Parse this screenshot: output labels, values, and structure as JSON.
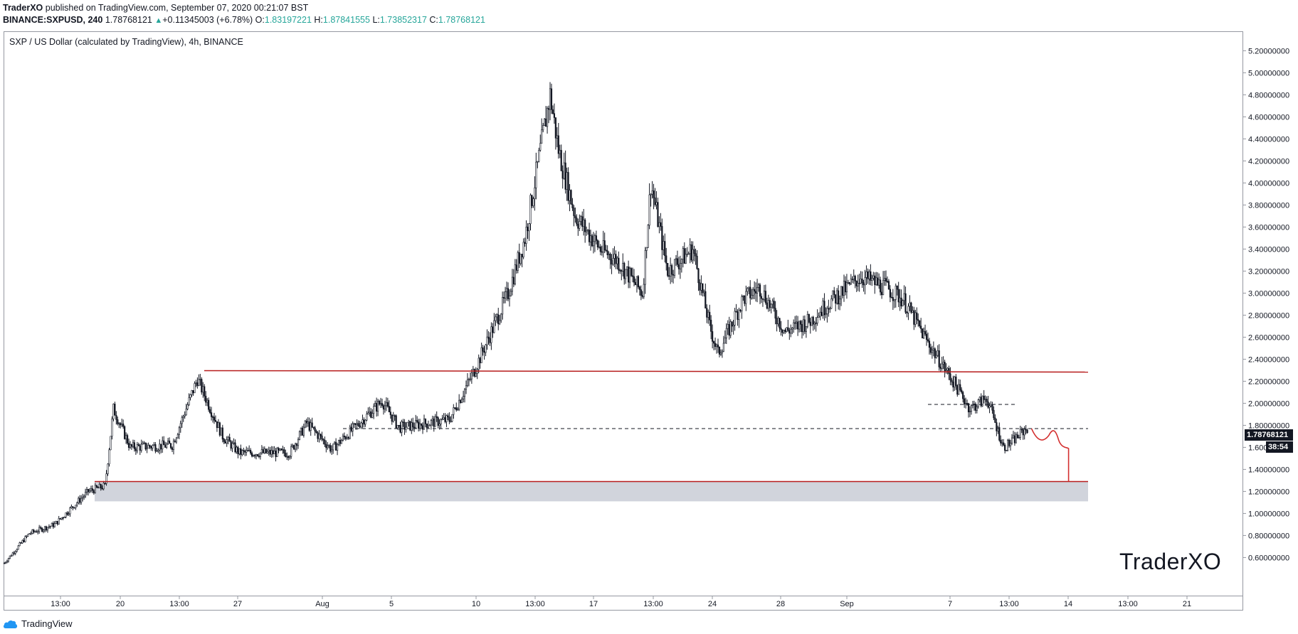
{
  "header": {
    "author": "TraderXO",
    "published_text": "published on TradingView.com, September 07, 2020 00:21:07 BST",
    "symbol_interval": "BINANCE:SXPUSD, 240",
    "last_price": "1.78768121",
    "change": "+0.11345003 (+6.78%)",
    "o_label": "O:",
    "o_value": "1.83197221",
    "h_label": "H:",
    "h_value": "1.87841555",
    "l_label": "L:",
    "l_value": "1.73852317",
    "c_label": "C:",
    "c_value": "1.78768121"
  },
  "chart_title": "SXP / US Dollar (calculated by TradingView), 4h, BINANCE",
  "watermark": "TraderXO",
  "footer_brand": "TradingView",
  "price_label": "1.78768121",
  "countdown_label": "38:54",
  "colors": {
    "line_red": "#b71c1c",
    "zone_gray": "#d1d4dc",
    "candle": "#131722",
    "label_dark": "#131722",
    "projection_red": "#d32f2f"
  },
  "chart_data": {
    "type": "candlestick",
    "y_ticks": [
      "0.60000000",
      "0.80000000",
      "1.00000000",
      "1.20000000",
      "1.40000000",
      "1.60000000",
      "1.80000000",
      "2.00000000",
      "2.20000000",
      "2.40000000",
      "2.60000000",
      "2.80000000",
      "3.00000000",
      "3.20000000",
      "3.40000000",
      "3.60000000",
      "3.80000000",
      "4.00000000",
      "4.20000000",
      "4.40000000",
      "4.60000000",
      "4.80000000",
      "5.00000000",
      "5.20000000"
    ],
    "x_ticks": [
      "13:00",
      "20",
      "13:00",
      "27",
      "Aug",
      "5",
      "10",
      "13:00",
      "17",
      "13:00",
      "24",
      "28",
      "Sep",
      "7",
      "13:00",
      "14",
      "13:00",
      "21"
    ],
    "ylim": [
      0.48,
      5.28
    ],
    "close_path": [
      {
        "day": 0,
        "price": 0.55
      },
      {
        "day": 3,
        "price": 0.82
      },
      {
        "day": 6,
        "price": 0.9
      },
      {
        "day": 10,
        "price": 1.2
      },
      {
        "day": 12,
        "price": 1.25
      },
      {
        "day": 13,
        "price": 1.95
      },
      {
        "day": 15,
        "price": 1.6
      },
      {
        "day": 20,
        "price": 1.62
      },
      {
        "day": 23,
        "price": 2.22
      },
      {
        "day": 26,
        "price": 1.7
      },
      {
        "day": 28,
        "price": 1.55
      },
      {
        "day": 34,
        "price": 1.55
      },
      {
        "day": 36,
        "price": 1.82
      },
      {
        "day": 39,
        "price": 1.58
      },
      {
        "day": 45,
        "price": 2.02
      },
      {
        "day": 47,
        "price": 1.78
      },
      {
        "day": 53,
        "price": 1.85
      },
      {
        "day": 56,
        "price": 2.3
      },
      {
        "day": 60,
        "price": 3.0
      },
      {
        "day": 62,
        "price": 3.5
      },
      {
        "day": 65,
        "price": 4.8
      },
      {
        "day": 66,
        "price": 4.3
      },
      {
        "day": 68,
        "price": 3.7
      },
      {
        "day": 71,
        "price": 3.4
      },
      {
        "day": 73,
        "price": 3.3
      },
      {
        "day": 76,
        "price": 3.0
      },
      {
        "day": 77,
        "price": 4.0
      },
      {
        "day": 79,
        "price": 3.2
      },
      {
        "day": 82,
        "price": 3.4
      },
      {
        "day": 84,
        "price": 2.7
      },
      {
        "day": 85,
        "price": 2.45
      },
      {
        "day": 88,
        "price": 2.95
      },
      {
        "day": 90,
        "price": 3.05
      },
      {
        "day": 93,
        "price": 2.65
      },
      {
        "day": 96,
        "price": 2.75
      },
      {
        "day": 98,
        "price": 2.9
      },
      {
        "day": 102,
        "price": 3.15
      },
      {
        "day": 105,
        "price": 3.05
      },
      {
        "day": 107,
        "price": 2.95
      },
      {
        "day": 110,
        "price": 2.55
      },
      {
        "day": 113,
        "price": 2.2
      },
      {
        "day": 115,
        "price": 1.95
      },
      {
        "day": 117,
        "price": 2.05
      },
      {
        "day": 119,
        "price": 1.6
      },
      {
        "day": 120,
        "price": 1.65
      },
      {
        "day": 122,
        "price": 1.79
      }
    ],
    "levels": {
      "resistance_upper": 2.29,
      "support_zone_top": 1.29,
      "support_zone_bottom": 1.11,
      "dashed_mid": 1.77,
      "dashed_short": 1.99
    }
  }
}
